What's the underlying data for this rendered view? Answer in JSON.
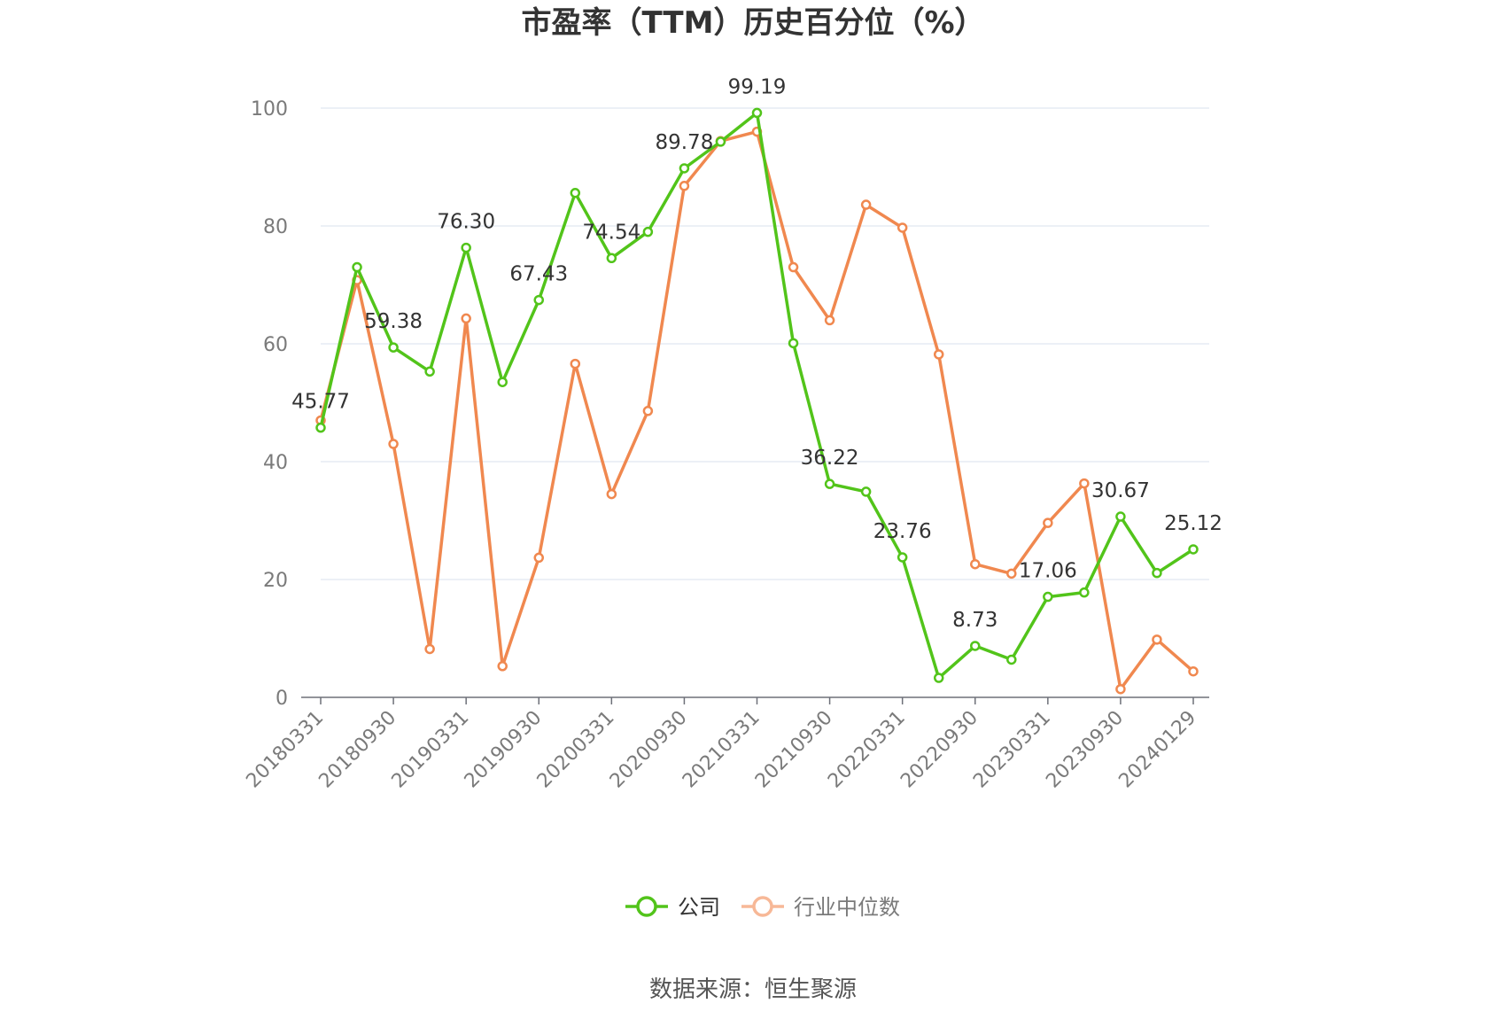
{
  "chart_data": {
    "type": "line",
    "title": "市盈率（TTM）历史百分位（%）",
    "source": "数据来源：恒生聚源",
    "x": [
      "20180331",
      "20180630",
      "20180930",
      "20181231",
      "20190331",
      "20190630",
      "20190930",
      "20191231",
      "20200331",
      "20200630",
      "20200930",
      "20201231",
      "20210331",
      "20210630",
      "20210930",
      "20211231",
      "20220331",
      "20220630",
      "20220930",
      "20221231",
      "20230331",
      "20230630",
      "20230930",
      "20231231",
      "20240129"
    ],
    "x_tick_labels": [
      "20180331",
      "20180930",
      "20190331",
      "20190930",
      "20200331",
      "20200930",
      "20210331",
      "20210930",
      "20220331",
      "20220930",
      "20230331",
      "20230930",
      "20240129"
    ],
    "ylim": [
      0,
      100
    ],
    "y_ticks": [
      "0",
      "20",
      "40",
      "60",
      "80",
      "100"
    ],
    "grid": true,
    "legend_position": "bottom",
    "series": [
      {
        "name": "公司",
        "color": "#52c41a",
        "values": [
          45.77,
          73.0,
          59.38,
          55.3,
          76.3,
          53.5,
          67.43,
          85.6,
          74.54,
          79.0,
          89.78,
          94.3,
          99.19,
          60.1,
          36.22,
          34.9,
          23.76,
          3.3,
          8.73,
          6.4,
          17.06,
          17.8,
          30.67,
          21.1,
          25.12
        ],
        "labels": {
          "0": "45.77",
          "2": "59.38",
          "4": "76.30",
          "6": "67.43",
          "8": "74.54",
          "10": "89.78",
          "12": "99.19",
          "14": "36.22",
          "16": "23.76",
          "18": "8.73",
          "20": "17.06",
          "22": "30.67",
          "24": "25.12"
        }
      },
      {
        "name": "行业中位数",
        "color": "#f0884f",
        "values": [
          47.0,
          70.8,
          43.0,
          8.2,
          64.3,
          5.3,
          23.7,
          56.6,
          34.5,
          48.6,
          86.8,
          94.4,
          96.0,
          73.0,
          64.0,
          83.6,
          79.7,
          58.2,
          22.6,
          21.0,
          29.6,
          36.3,
          1.4,
          9.8,
          4.4
        ]
      }
    ]
  }
}
